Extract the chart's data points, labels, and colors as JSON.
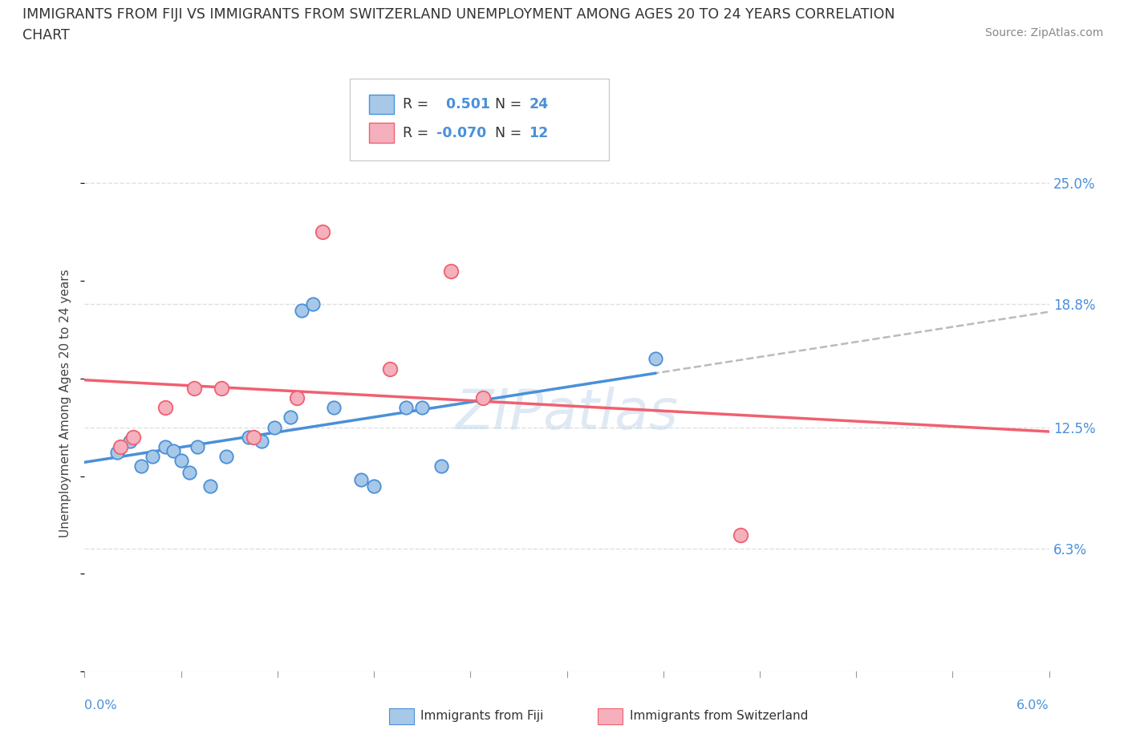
{
  "title_line1": "IMMIGRANTS FROM FIJI VS IMMIGRANTS FROM SWITZERLAND UNEMPLOYMENT AMONG AGES 20 TO 24 YEARS CORRELATION",
  "title_line2": "CHART",
  "source": "Source: ZipAtlas.com",
  "ylabel_label": "Unemployment Among Ages 20 to 24 years",
  "xmin": 0.0,
  "xmax": 6.0,
  "ymin": 0.0,
  "ymax": 27.5,
  "yticks": [
    6.3,
    12.5,
    18.8,
    25.0
  ],
  "ytick_labels": [
    "6.3%",
    "12.5%",
    "18.8%",
    "25.0%"
  ],
  "xtick_left_label": "0.0%",
  "xtick_right_label": "6.0%",
  "legend_fiji_R": "0.501",
  "legend_fiji_N": "24",
  "legend_swiss_R": "-0.070",
  "legend_swiss_N": "12",
  "fiji_color": "#a8c8e8",
  "swiss_color": "#f4b0bc",
  "fiji_line_color": "#4a90d9",
  "swiss_line_color": "#f06070",
  "trend_dash_color": "#aaaaaa",
  "fiji_points": [
    [
      0.2,
      11.2
    ],
    [
      0.28,
      11.8
    ],
    [
      0.35,
      10.5
    ],
    [
      0.42,
      11.0
    ],
    [
      0.5,
      11.5
    ],
    [
      0.55,
      11.3
    ],
    [
      0.6,
      10.8
    ],
    [
      0.65,
      10.2
    ],
    [
      0.7,
      11.5
    ],
    [
      0.78,
      9.5
    ],
    [
      0.88,
      11.0
    ],
    [
      1.02,
      12.0
    ],
    [
      1.1,
      11.8
    ],
    [
      1.18,
      12.5
    ],
    [
      1.28,
      13.0
    ],
    [
      1.35,
      18.5
    ],
    [
      1.42,
      18.8
    ],
    [
      1.55,
      13.5
    ],
    [
      1.72,
      9.8
    ],
    [
      1.8,
      9.5
    ],
    [
      2.0,
      13.5
    ],
    [
      2.1,
      13.5
    ],
    [
      2.22,
      10.5
    ],
    [
      3.55,
      16.0
    ]
  ],
  "swiss_points": [
    [
      0.22,
      11.5
    ],
    [
      0.3,
      12.0
    ],
    [
      0.5,
      13.5
    ],
    [
      0.68,
      14.5
    ],
    [
      0.85,
      14.5
    ],
    [
      1.05,
      12.0
    ],
    [
      1.32,
      14.0
    ],
    [
      1.48,
      22.5
    ],
    [
      1.9,
      15.5
    ],
    [
      2.28,
      20.5
    ],
    [
      2.48,
      14.0
    ],
    [
      4.08,
      7.0
    ]
  ],
  "watermark": "ZIPatlas",
  "background_color": "#ffffff",
  "grid_color": "#e0e0e0"
}
